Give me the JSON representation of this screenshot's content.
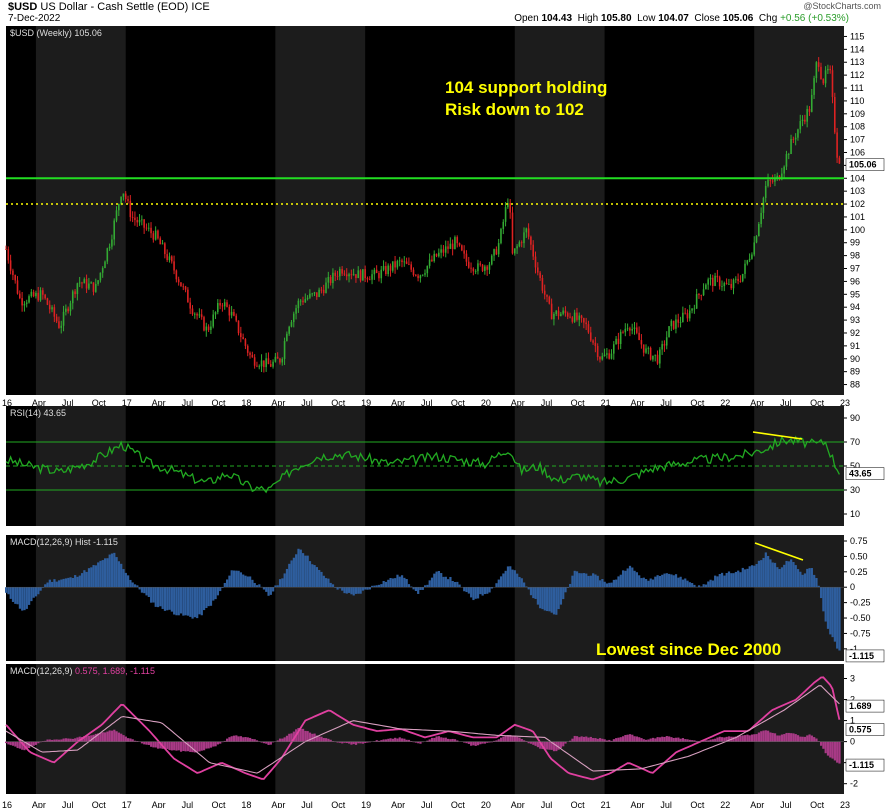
{
  "header": {
    "symbol": "$USD",
    "name": "US Dollar - Cash Settle (EOD)",
    "exchange": "ICE",
    "date": "7-Dec-2022",
    "watermark": "@StockCharts.com",
    "open_label": "Open",
    "open": "104.43",
    "high_label": "High",
    "high": "105.80",
    "low_label": "Low",
    "low": "104.07",
    "close_label": "Close",
    "close": "105.06",
    "chg_label": "Chg",
    "chg": "+0.56 (+0.53%)"
  },
  "panes": {
    "price_label": "$USD (Weekly) 105.06",
    "rsi_label": "RSI(14) 43.65",
    "hist_label": "MACD(12,26,9) Hist -1.115",
    "macd_label": "MACD(12,26,9)",
    "macd_values": "0.575, 1.689, -1.115"
  },
  "annotations": {
    "support_line1": "104 support holding",
    "support_line2": "Risk down to 102",
    "lowest": "Lowest since Dec 2000"
  },
  "colors": {
    "background": "#000000",
    "band": "#1c1c1c",
    "up": "#33aa33",
    "down": "#dd2222",
    "support": "#22dd22",
    "dotted": "#ffff00",
    "rsi": "#22aa22",
    "hist": "#2e5e9e",
    "macd": "#e040a0",
    "signal": "#d79fbf",
    "annotation": "#ffff00"
  },
  "chart_data": [
    {
      "type": "candlestick",
      "title": "$USD (Weekly) 105.06",
      "ylim": [
        87.5,
        115.5
      ],
      "yticks": [
        88,
        89,
        90,
        91,
        92,
        93,
        94,
        95,
        96,
        97,
        98,
        99,
        100,
        101,
        102,
        103,
        104,
        105,
        106,
        107,
        108,
        109,
        110,
        111,
        112,
        113,
        114,
        115
      ],
      "last_value": "105.06",
      "support_level": 104,
      "risk_level": 102,
      "grid": false,
      "x_tick_labels": [
        "16",
        "Apr",
        "Jul",
        "Oct",
        "17",
        "Apr",
        "Jul",
        "Oct",
        "18",
        "Apr",
        "Jul",
        "Oct",
        "19",
        "Apr",
        "Jul",
        "Oct",
        "20",
        "Apr",
        "Jul",
        "Oct",
        "21",
        "Apr",
        "Jul",
        "Oct",
        "22",
        "Apr",
        "Jul",
        "Oct",
        "23"
      ],
      "anchors": [
        [
          2016.0,
          98.5
        ],
        [
          2016.12,
          94.5
        ],
        [
          2016.3,
          95.0
        ],
        [
          2016.45,
          92.5
        ],
        [
          2016.6,
          96.0
        ],
        [
          2016.75,
          95.5
        ],
        [
          2016.88,
          99.5
        ],
        [
          2016.97,
          103.3
        ],
        [
          2017.05,
          101.0
        ],
        [
          2017.25,
          99.5
        ],
        [
          2017.4,
          97.0
        ],
        [
          2017.55,
          94.0
        ],
        [
          2017.68,
          92.2
        ],
        [
          2017.8,
          94.5
        ],
        [
          2017.88,
          93.5
        ],
        [
          2018.05,
          90.0
        ],
        [
          2018.2,
          89.5
        ],
        [
          2018.3,
          90.0
        ],
        [
          2018.35,
          92.5
        ],
        [
          2018.45,
          94.5
        ],
        [
          2018.6,
          95.0
        ],
        [
          2018.8,
          97.0
        ],
        [
          2018.95,
          96.5
        ],
        [
          2019.1,
          96.5
        ],
        [
          2019.3,
          97.5
        ],
        [
          2019.45,
          96.5
        ],
        [
          2019.6,
          98.0
        ],
        [
          2019.75,
          99.0
        ],
        [
          2019.85,
          97.5
        ],
        [
          2019.95,
          97.0
        ],
        [
          2020.05,
          97.5
        ],
        [
          2020.12,
          99.0
        ],
        [
          2020.2,
          102.8
        ],
        [
          2020.23,
          98.0
        ],
        [
          2020.35,
          100.0
        ],
        [
          2020.45,
          96.5
        ],
        [
          2020.55,
          93.5
        ],
        [
          2020.7,
          93.5
        ],
        [
          2020.85,
          92.5
        ],
        [
          2020.97,
          90.0
        ],
        [
          2021.05,
          90.5
        ],
        [
          2021.2,
          92.8
        ],
        [
          2021.35,
          90.5
        ],
        [
          2021.45,
          90.0
        ],
        [
          2021.55,
          92.5
        ],
        [
          2021.7,
          93.5
        ],
        [
          2021.85,
          96.0
        ],
        [
          2021.95,
          96.0
        ],
        [
          2022.05,
          95.5
        ],
        [
          2022.15,
          96.5
        ],
        [
          2022.25,
          99.0
        ],
        [
          2022.35,
          103.5
        ],
        [
          2022.45,
          104.0
        ],
        [
          2022.55,
          106.5
        ],
        [
          2022.65,
          108.5
        ],
        [
          2022.72,
          109.5
        ],
        [
          2022.78,
          113.5
        ],
        [
          2022.82,
          111.5
        ],
        [
          2022.88,
          112.5
        ],
        [
          2022.94,
          106.0
        ],
        [
          2022.98,
          105.06
        ]
      ]
    },
    {
      "type": "line",
      "title": "RSI(14) 43.65",
      "ylim": [
        0,
        100
      ],
      "yticks": [
        10,
        30,
        50,
        70,
        90
      ],
      "reference_lines": [
        30,
        50,
        70
      ],
      "last_value": "43.65",
      "series": [
        {
          "x": [
            2016.0,
            2016.2,
            2016.45,
            2016.7,
            2016.97,
            2017.2,
            2017.4,
            2017.55,
            2017.68,
            2017.85,
            2018.05,
            2018.2,
            2018.4,
            2018.6,
            2018.8,
            2019.0,
            2019.2,
            2019.4,
            2019.6,
            2019.8,
            2020.0,
            2020.2,
            2020.3,
            2020.45,
            2020.6,
            2020.8,
            2020.97,
            2021.2,
            2021.4,
            2021.6,
            2021.8,
            2022.0,
            2022.2,
            2022.35,
            2022.5,
            2022.65,
            2022.75,
            2022.85,
            2022.93,
            2022.98
          ],
          "y": [
            55,
            50,
            45,
            53,
            68,
            52,
            46,
            40,
            36,
            44,
            32,
            30,
            48,
            58,
            60,
            57,
            52,
            55,
            58,
            55,
            52,
            65,
            46,
            50,
            38,
            42,
            36,
            40,
            48,
            52,
            55,
            57,
            60,
            65,
            72,
            70,
            68,
            70,
            50,
            43.65
          ]
        }
      ]
    },
    {
      "type": "bar",
      "title": "MACD(12,26,9) Hist -1.115",
      "ylim": [
        -1.1,
        0.75
      ],
      "yticks": [
        0.75,
        0.5,
        0.25,
        0.0,
        -0.25,
        -0.5,
        -0.75,
        -1.0
      ],
      "last_value": "-1.115",
      "anchors": [
        [
          2016.0,
          -0.1
        ],
        [
          2016.15,
          -0.4
        ],
        [
          2016.35,
          0.1
        ],
        [
          2016.55,
          0.15
        ],
        [
          2016.7,
          0.3
        ],
        [
          2016.9,
          0.55
        ],
        [
          2017.05,
          0.1
        ],
        [
          2017.25,
          -0.3
        ],
        [
          2017.45,
          -0.45
        ],
        [
          2017.6,
          -0.5
        ],
        [
          2017.75,
          -0.2
        ],
        [
          2017.9,
          0.3
        ],
        [
          2018.05,
          0.15
        ],
        [
          2018.2,
          -0.15
        ],
        [
          2018.35,
          0.3
        ],
        [
          2018.45,
          0.65
        ],
        [
          2018.6,
          0.3
        ],
        [
          2018.75,
          0.0
        ],
        [
          2018.9,
          -0.15
        ],
        [
          2019.1,
          0.05
        ],
        [
          2019.3,
          0.2
        ],
        [
          2019.45,
          -0.1
        ],
        [
          2019.6,
          0.25
        ],
        [
          2019.75,
          0.1
        ],
        [
          2019.9,
          -0.2
        ],
        [
          2020.05,
          -0.05
        ],
        [
          2020.2,
          0.35
        ],
        [
          2020.3,
          0.15
        ],
        [
          2020.45,
          -0.3
        ],
        [
          2020.6,
          -0.45
        ],
        [
          2020.75,
          0.25
        ],
        [
          2020.9,
          0.2
        ],
        [
          2021.05,
          0.05
        ],
        [
          2021.2,
          0.35
        ],
        [
          2021.35,
          0.1
        ],
        [
          2021.5,
          0.25
        ],
        [
          2021.65,
          0.15
        ],
        [
          2021.8,
          0.0
        ],
        [
          2021.95,
          0.2
        ],
        [
          2022.1,
          0.25
        ],
        [
          2022.25,
          0.35
        ],
        [
          2022.35,
          0.55
        ],
        [
          2022.45,
          0.3
        ],
        [
          2022.55,
          0.45
        ],
        [
          2022.65,
          0.2
        ],
        [
          2022.72,
          0.35
        ],
        [
          2022.78,
          0.1
        ],
        [
          2022.85,
          -0.6
        ],
        [
          2022.92,
          -0.9
        ],
        [
          2022.98,
          -1.115
        ]
      ]
    },
    {
      "type": "line",
      "title": "MACD(12,26,9)",
      "ylim": [
        -2.3,
        3.5
      ],
      "yticks": [
        3,
        2,
        1,
        0,
        -1,
        -2
      ],
      "last_values": [
        "1.689",
        "0.575",
        "-1.115"
      ],
      "series": [
        {
          "name": "MACD",
          "x": [
            2016.0,
            2016.2,
            2016.4,
            2016.6,
            2016.8,
            2016.97,
            2017.2,
            2017.4,
            2017.6,
            2017.8,
            2018.0,
            2018.15,
            2018.3,
            2018.5,
            2018.7,
            2018.9,
            2019.1,
            2019.3,
            2019.5,
            2019.7,
            2019.9,
            2020.1,
            2020.25,
            2020.4,
            2020.55,
            2020.7,
            2020.9,
            2021.05,
            2021.2,
            2021.4,
            2021.6,
            2021.8,
            2022.0,
            2022.2,
            2022.4,
            2022.6,
            2022.75,
            2022.82,
            2022.9,
            2022.98
          ],
          "y": [
            0.8,
            -0.5,
            -1.0,
            0.0,
            0.8,
            1.8,
            0.5,
            -0.8,
            -1.5,
            -1.0,
            -1.5,
            -1.8,
            -0.8,
            1.0,
            1.5,
            0.8,
            0.5,
            0.6,
            0.2,
            0.5,
            0.2,
            0.2,
            0.8,
            0.5,
            -0.8,
            -1.5,
            -1.8,
            -1.5,
            -1.0,
            -1.5,
            -0.5,
            0.0,
            0.5,
            0.5,
            1.5,
            2.0,
            2.8,
            3.1,
            2.6,
            0.575
          ]
        },
        {
          "name": "Signal",
          "x": [
            2016.0,
            2016.3,
            2016.6,
            2016.97,
            2017.3,
            2017.7,
            2018.1,
            2018.5,
            2018.9,
            2019.3,
            2019.7,
            2020.1,
            2020.5,
            2020.9,
            2021.3,
            2021.7,
            2022.1,
            2022.5,
            2022.8,
            2022.98
          ],
          "y": [
            0.5,
            -0.5,
            -0.4,
            1.2,
            0.9,
            -1.0,
            -1.5,
            0.0,
            1.0,
            0.6,
            0.5,
            0.3,
            0.2,
            -1.4,
            -1.3,
            -0.7,
            0.2,
            1.5,
            2.7,
            1.689
          ]
        }
      ]
    }
  ]
}
